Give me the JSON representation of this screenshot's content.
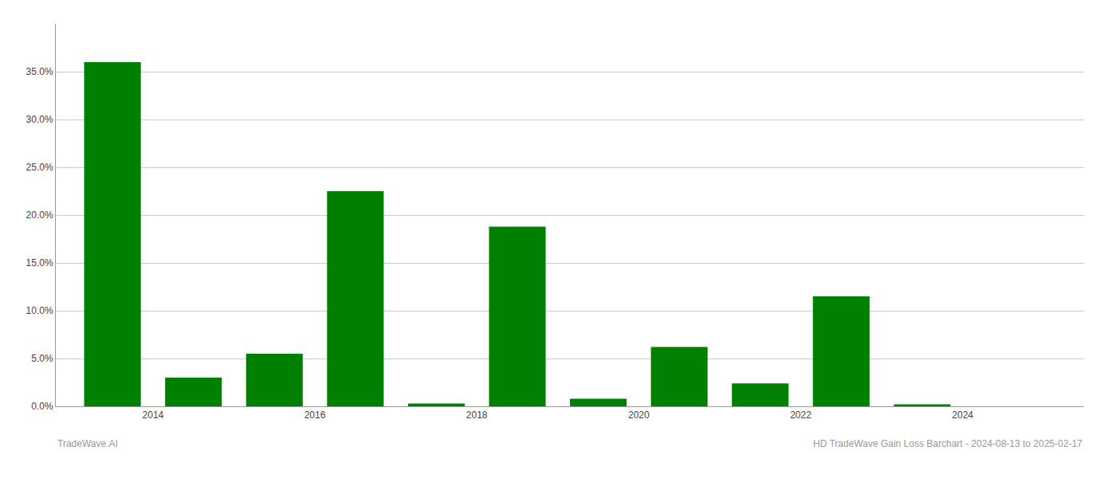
{
  "chart_data": {
    "type": "bar",
    "x": [
      2013.5,
      2014.5,
      2015.5,
      2016.5,
      2017.5,
      2018.5,
      2019.5,
      2020.5,
      2021.5,
      2022.5,
      2023.5,
      2024.5
    ],
    "values": [
      0.36,
      0.03,
      0.055,
      0.225,
      0.003,
      0.188,
      0.008,
      0.062,
      0.024,
      0.115,
      0.002,
      0.0
    ],
    "color": "#008000",
    "xlim": [
      2012.8,
      2025.5
    ],
    "xticks": [
      2014,
      2016,
      2018,
      2020,
      2022,
      2024
    ],
    "ylim": [
      0,
      0.4
    ],
    "yticks": [
      {
        "value": 0.0,
        "label": "0.0%"
      },
      {
        "value": 0.05,
        "label": "5.0%"
      },
      {
        "value": 0.1,
        "label": "10.0%"
      },
      {
        "value": 0.15,
        "label": "15.0%"
      },
      {
        "value": 0.2,
        "label": "20.0%"
      },
      {
        "value": 0.25,
        "label": "25.0%"
      },
      {
        "value": 0.3,
        "label": "30.0%"
      },
      {
        "value": 0.35,
        "label": "35.0%"
      }
    ],
    "grid": true,
    "annotations": [
      "TradeWave.AI",
      "HD TradeWave Gain Loss Barchart - 2024-08-13 to 2025-02-17"
    ]
  }
}
